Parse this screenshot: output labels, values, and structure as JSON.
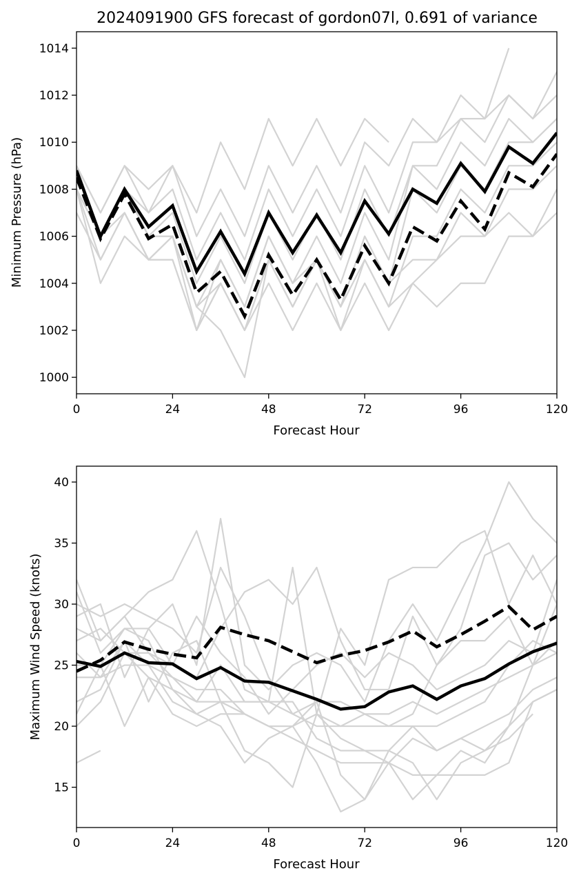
{
  "title": "2024091900 GFS forecast of gordon07l, 0.691 of variance",
  "colors": {
    "ensemble": "#d3d3d3",
    "primary": "#000000"
  },
  "chart_data": [
    {
      "type": "line",
      "name": "pressure",
      "xlabel": "Forecast Hour",
      "ylabel": "Minimum Pressure (hPa)",
      "xlim": [
        0,
        120
      ],
      "ylim": [
        999.3,
        1014.7
      ],
      "xticks": [
        0,
        24,
        48,
        72,
        96,
        120
      ],
      "yticks": [
        1000,
        1002,
        1004,
        1006,
        1008,
        1010,
        1012,
        1014
      ],
      "x": [
        0,
        6,
        12,
        18,
        24,
        30,
        36,
        42,
        48,
        54,
        60,
        66,
        72,
        78,
        84,
        90,
        96,
        102,
        108,
        114,
        120
      ],
      "ensemble": [
        [
          1009,
          1007,
          1009,
          1008,
          1009,
          1007,
          1010,
          1008,
          1011,
          1009,
          1011,
          1009,
          1011,
          1010,
          null,
          null,
          null,
          null,
          null,
          null,
          null
        ],
        [
          1009,
          1007,
          1009,
          1007,
          1009,
          1006,
          1008,
          1006,
          1009,
          1007,
          1009,
          1007,
          1010,
          1009,
          1011,
          1010,
          1012,
          1011,
          1014,
          null,
          null
        ],
        [
          1008,
          1006,
          1008,
          1007,
          1008,
          1005,
          1007,
          1005,
          1008,
          1006,
          1008,
          1006,
          1009,
          1007,
          1010,
          1010,
          1011,
          1011,
          1012,
          1011,
          1012
        ],
        [
          1009,
          1006,
          1008,
          1006,
          1007,
          1004,
          1006,
          1004,
          1007,
          1005,
          1007,
          1005,
          1008,
          1006,
          1009,
          1009,
          1011,
          1010,
          1012,
          1011,
          1013
        ],
        [
          1008,
          1006,
          1008,
          1006,
          1006,
          1003,
          1005,
          1003,
          1006,
          1004,
          1006,
          1004,
          1007,
          1005,
          1009,
          1008,
          1010,
          1009,
          1011,
          1010,
          1011
        ],
        [
          1008,
          1005,
          1007,
          1005,
          1005,
          1002,
          1005,
          1003,
          1006,
          1004,
          1005,
          1003,
          1006,
          1004,
          1008,
          1007,
          1009,
          1008,
          1010,
          1010,
          1011
        ],
        [
          1007,
          1005,
          1007,
          1005,
          1006,
          1003,
          1004,
          1002,
          1005,
          1003,
          1005,
          1002,
          1005,
          1003,
          1006,
          1006,
          1008,
          1007,
          1009,
          1009,
          1010
        ],
        [
          1008,
          1004,
          1006,
          1005,
          1005,
          1002,
          1004,
          1002,
          1004,
          1002,
          1004,
          1002,
          1004,
          1002,
          1004,
          1005,
          1006,
          1006,
          1008,
          1008,
          1009
        ],
        [
          1009,
          1006,
          1008,
          1006,
          1006,
          1003,
          1002,
          1000,
          1005,
          1003,
          1005,
          1003,
          1006,
          1004,
          1005,
          1005,
          1007,
          1006,
          1007,
          1006,
          1008
        ],
        [
          1008,
          1006,
          1007,
          1005,
          1006,
          1002,
          1004,
          1002,
          1005,
          1003,
          1005,
          1003,
          1005,
          1003,
          1004,
          1003,
          1004,
          1004,
          1006,
          1006,
          1007
        ]
      ],
      "series": [
        {
          "values": [
            1008.8,
            1006.0,
            1008.0,
            1006.4,
            1007.3,
            1004.5,
            1006.2,
            1004.4,
            1007.0,
            1005.3,
            1006.9,
            1005.3,
            1007.5,
            1006.1,
            1008.0,
            1007.4,
            1009.1,
            1007.9,
            1009.8,
            1009.1,
            1010.4
          ],
          "style": "solid"
        },
        {
          "values": [
            1008.5,
            1005.9,
            1007.8,
            1005.9,
            1006.5,
            1003.6,
            1004.5,
            1002.6,
            1005.2,
            1003.5,
            1005.0,
            1003.3,
            1005.6,
            1004.0,
            1006.4,
            1005.8,
            1007.5,
            1006.3,
            1008.7,
            1008.1,
            1009.5
          ],
          "style": "dashed"
        }
      ]
    },
    {
      "type": "line",
      "name": "wind",
      "xlabel": "Forecast Hour",
      "ylabel": "Maximum Wind Speed (knots)",
      "xlim": [
        0,
        120
      ],
      "ylim": [
        11.7,
        41.3
      ],
      "xticks": [
        0,
        24,
        48,
        72,
        96,
        120
      ],
      "yticks": [
        15,
        20,
        25,
        30,
        35,
        40
      ],
      "x": [
        0,
        6,
        12,
        18,
        24,
        30,
        36,
        42,
        48,
        54,
        60,
        66,
        72,
        78,
        84,
        90,
        96,
        102,
        108,
        114,
        120
      ],
      "ensemble": [
        [
          17,
          18,
          null,
          null,
          null,
          null,
          null,
          null,
          null,
          null,
          null,
          null,
          null,
          null,
          null,
          null,
          null,
          null,
          null,
          null,
          null
        ],
        [
          31,
          26,
          28,
          28,
          30,
          25,
          37,
          25,
          23,
          25,
          26,
          25,
          22,
          27,
          30,
          27,
          31,
          35,
          40,
          37,
          35
        ],
        [
          32,
          27,
          29,
          31,
          32,
          36,
          30,
          23,
          22,
          33,
          21,
          28,
          25,
          32,
          33,
          33,
          35,
          36,
          30,
          34,
          30
        ],
        [
          30,
          29,
          30,
          29,
          28,
          26,
          33,
          29,
          24,
          21,
          20,
          20,
          21,
          20,
          21,
          25,
          28,
          34,
          35,
          32,
          34
        ],
        [
          29,
          30,
          24,
          28,
          25,
          24,
          28,
          31,
          32,
          30,
          33,
          27,
          23,
          23,
          29,
          25,
          27,
          27,
          29,
          25,
          30
        ],
        [
          28,
          27,
          29,
          26,
          25,
          29,
          26,
          24,
          21,
          23,
          25,
          26,
          24,
          26,
          25,
          23,
          24,
          25,
          27,
          26,
          32
        ],
        [
          27,
          28,
          26,
          26,
          24,
          22,
          25,
          22,
          22,
          21,
          22,
          22,
          21,
          21,
          22,
          21,
          22,
          23,
          24,
          25,
          27
        ],
        [
          25,
          25,
          28,
          27,
          23,
          22,
          22,
          21,
          20,
          20,
          21,
          20,
          20,
          20,
          20,
          20,
          21,
          22,
          25,
          27,
          26
        ],
        [
          24,
          24,
          25,
          25,
          22,
          21,
          22,
          22,
          22,
          22,
          19,
          18,
          18,
          17,
          19,
          18,
          19,
          20,
          21,
          23,
          24
        ],
        [
          22,
          23,
          27,
          25,
          24,
          23,
          23,
          21,
          20,
          19,
          18,
          17,
          17,
          17,
          16,
          16,
          18,
          17,
          20,
          25,
          26
        ],
        [
          20,
          22,
          26,
          24,
          23,
          21,
          20,
          17,
          19,
          20,
          22,
          16,
          14,
          17,
          14,
          16,
          16,
          16,
          17,
          22,
          23
        ],
        [
          21,
          25,
          20,
          24,
          21,
          20,
          21,
          21,
          20,
          20,
          17,
          13,
          14,
          18,
          20,
          18,
          19,
          18,
          19,
          21,
          null
        ],
        [
          26,
          24,
          27,
          22,
          26,
          27,
          22,
          18,
          17,
          15,
          21,
          19,
          18,
          18,
          17,
          14,
          17,
          18,
          20,
          22,
          23
        ]
      ],
      "series": [
        {
          "values": [
            25.3,
            24.9,
            26.0,
            25.2,
            25.1,
            23.9,
            24.8,
            23.7,
            23.6,
            22.9,
            22.2,
            21.4,
            21.6,
            22.8,
            23.3,
            22.2,
            23.3,
            23.9,
            25.1,
            26.1,
            26.8
          ],
          "style": "solid"
        },
        {
          "values": [
            24.5,
            25.4,
            26.9,
            26.3,
            25.9,
            25.6,
            28.1,
            27.5,
            27.0,
            26.1,
            25.2,
            25.8,
            26.2,
            26.9,
            27.8,
            26.5,
            27.5,
            28.6,
            29.8,
            27.9,
            29.0
          ],
          "style": "dashed"
        }
      ]
    }
  ]
}
